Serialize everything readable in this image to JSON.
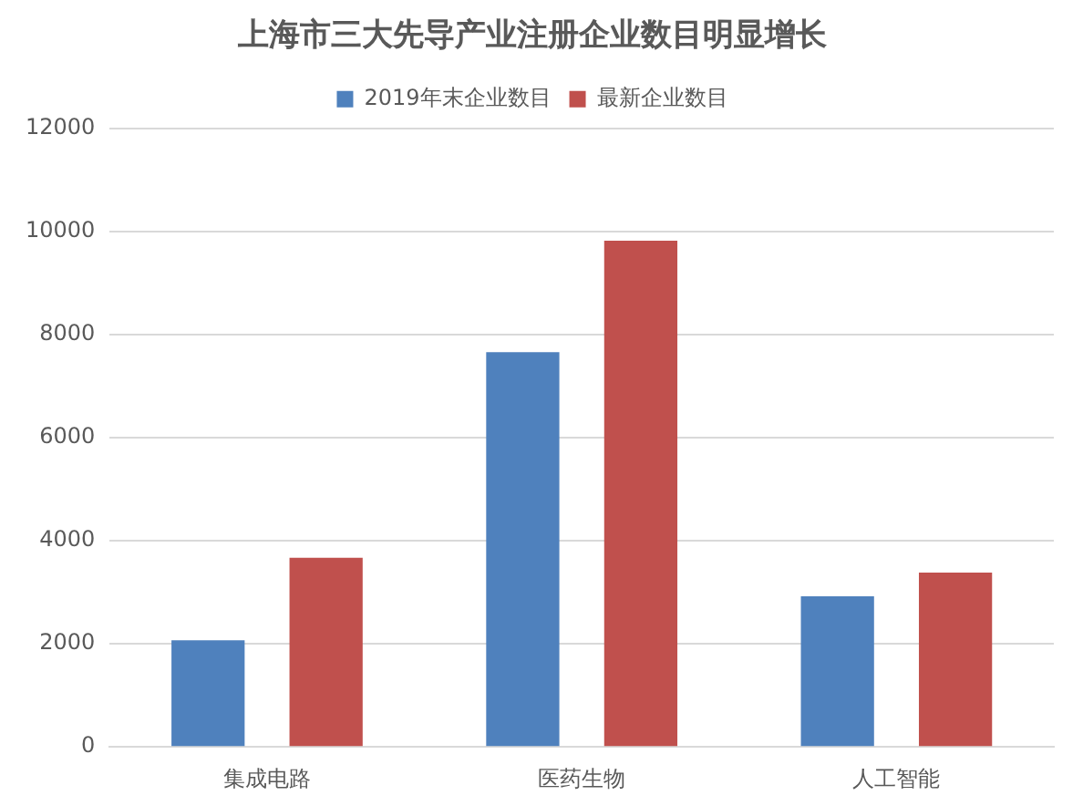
{
  "chart_data": {
    "type": "bar",
    "title": "上海市三大先导产业注册企业数目明显增长",
    "categories": [
      "集成电路",
      "医药生物",
      "人工智能"
    ],
    "series": [
      {
        "name": "2019年末企业数目",
        "color": "#4f81bd",
        "values": [
          2070,
          7660,
          2920
        ]
      },
      {
        "name": "最新企业数目",
        "color": "#c0504d",
        "values": [
          3670,
          9820,
          3380
        ]
      }
    ],
    "ylim": [
      0,
      12000
    ],
    "yticks": [
      0,
      2000,
      4000,
      6000,
      8000,
      10000,
      12000
    ],
    "grid": "y",
    "legend": "top"
  }
}
